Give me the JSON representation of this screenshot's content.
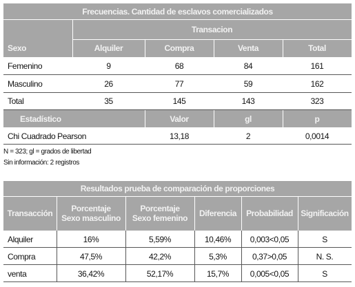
{
  "table1": {
    "title": "Frecuencias. Cantidad de esclavos comercializados",
    "group_header": "Transacion",
    "headers": [
      "Sexo",
      "Alquiler",
      "Compra",
      "Venta",
      "Total"
    ],
    "rows": [
      [
        "Femenino",
        "9",
        "68",
        "84",
        "161"
      ],
      [
        "Masculino",
        "26",
        "77",
        "59",
        "162"
      ],
      [
        "Total",
        "35",
        "145",
        "143",
        "323"
      ]
    ],
    "stat_headers": [
      "Estadístico",
      "Valor",
      "gl",
      "p"
    ],
    "stat_rows": [
      [
        "Chi Cuadrado Pearson",
        "13,18",
        "2",
        "0,0014"
      ]
    ]
  },
  "notes": [
    "N = 323; gl = grados de libertad",
    "Sin información: 2 registros"
  ],
  "table2": {
    "title": "Resultados prueba de comparación de proporciones",
    "headers": [
      [
        "Transacción"
      ],
      [
        "Porcentaje",
        "Sexo masculino"
      ],
      [
        "Porcentaje",
        "Sexo femenino"
      ],
      [
        "Diferencia"
      ],
      [
        "Probabilidad"
      ],
      [
        "Significación"
      ]
    ],
    "rows": [
      [
        "Alquiler",
        "16%",
        "5,59%",
        "10,46%",
        "0,003<0,05",
        "S"
      ],
      [
        "Compra",
        "47,5%",
        "42,2%",
        "5,3%",
        "0,37>0,05",
        "N. S."
      ],
      [
        "venta",
        "36,42%",
        "52,17%",
        "15,7%",
        "0,005<0,05",
        "S"
      ]
    ]
  }
}
